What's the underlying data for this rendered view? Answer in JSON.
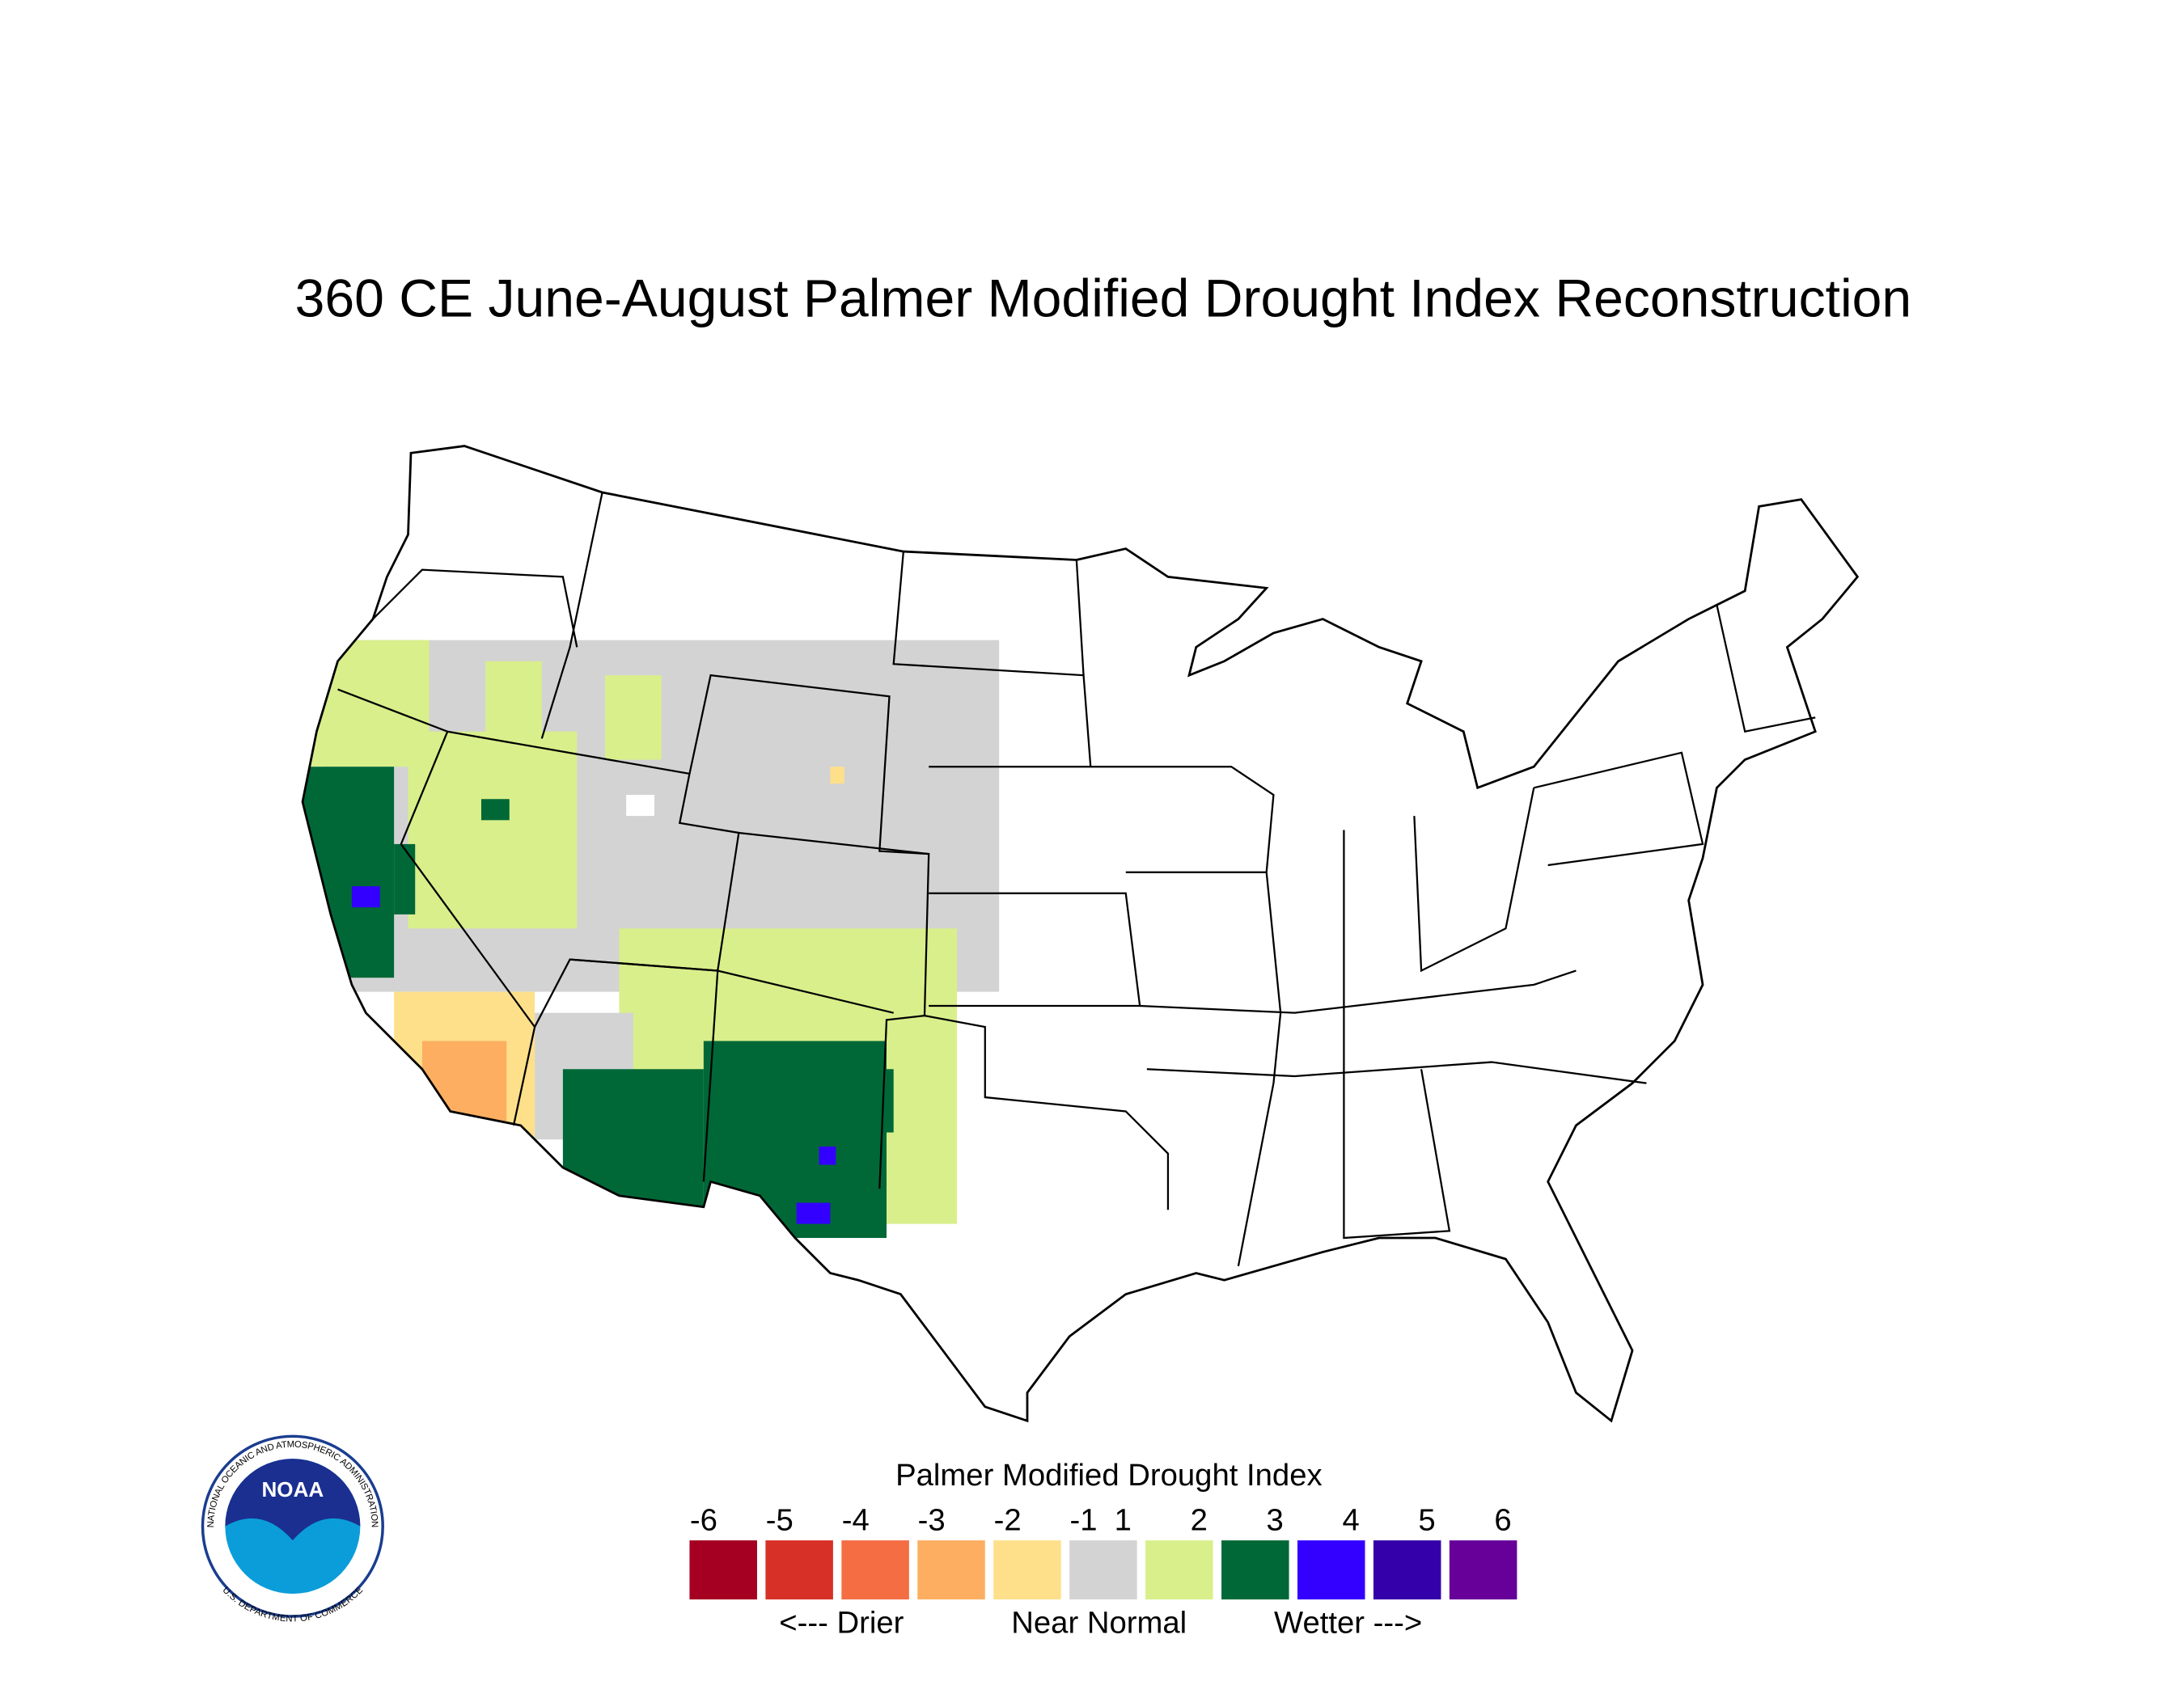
{
  "title": "360 CE  June-August  Palmer Modified Drought Index Reconstruction",
  "legend": {
    "title": "Palmer Modified Drought Index",
    "ticks": [
      -6,
      -5,
      -4,
      -3,
      -2,
      -1,
      1,
      2,
      3,
      4,
      5,
      6
    ],
    "colors": [
      "#a50021",
      "#d73027",
      "#f46d43",
      "#fdae61",
      "#fee08b",
      "#d3d3d3",
      "#d9ef8b",
      "#006837",
      "#3300ff",
      "#3300aa",
      "#660099"
    ],
    "labels": [
      "<--- Drier",
      "Near Normal",
      "Wetter --->"
    ]
  },
  "logo": {
    "text": "NOAA",
    "ring_top": "NATIONAL OCEANIC AND ATMOSPHERIC ADMINISTRATION",
    "ring_bottom": "U.S. DEPARTMENT OF COMMERCE"
  }
}
